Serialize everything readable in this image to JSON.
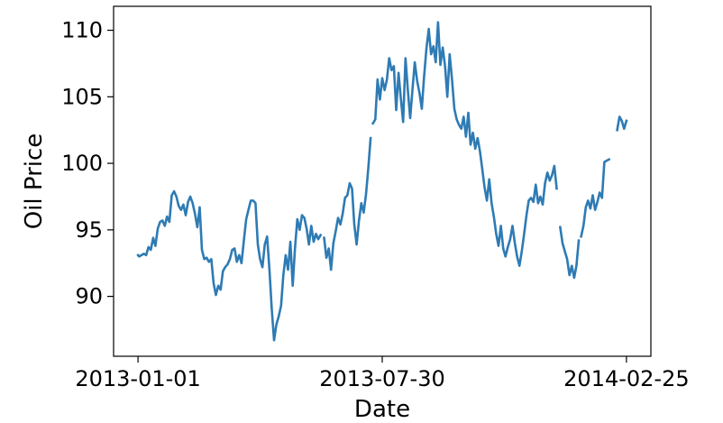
{
  "chart_data": {
    "type": "line",
    "title": "",
    "xlabel": "Date",
    "ylabel": "Oil Price",
    "x_tick_labels": [
      "2013-01-01",
      "2013-07-30",
      "2014-02-25"
    ],
    "y_ticks": [
      90,
      95,
      100,
      105,
      110
    ],
    "ylim": [
      85.5,
      111.8
    ],
    "xlim": [
      "2012-12-11",
      "2014-03-18"
    ],
    "grid": false,
    "line_color": "#2e7bb4",
    "series": [
      {
        "points": [
          [
            "2013-01-01",
            93.1
          ],
          [
            "2013-01-02",
            93.0
          ],
          [
            "2013-01-04",
            93.1
          ],
          [
            "2013-01-06",
            93.2
          ],
          [
            "2013-01-08",
            93.1
          ],
          [
            "2013-01-10",
            93.7
          ],
          [
            "2013-01-12",
            93.5
          ],
          [
            "2013-01-14",
            94.4
          ],
          [
            "2013-01-16",
            93.8
          ],
          [
            "2013-01-18",
            95.1
          ],
          [
            "2013-01-20",
            95.6
          ],
          [
            "2013-01-22",
            95.7
          ],
          [
            "2013-01-24",
            95.3
          ],
          [
            "2013-01-26",
            96.0
          ],
          [
            "2013-01-28",
            95.6
          ],
          [
            "2013-01-30",
            97.6
          ],
          [
            "2013-02-01",
            97.9
          ],
          [
            "2013-02-03",
            97.5
          ],
          [
            "2013-02-05",
            96.8
          ],
          [
            "2013-02-07",
            96.5
          ],
          [
            "2013-02-09",
            96.9
          ],
          [
            "2013-02-11",
            96.1
          ],
          [
            "2013-02-13",
            97.1
          ],
          [
            "2013-02-15",
            97.5
          ],
          [
            "2013-02-17",
            97.0
          ],
          [
            "2013-02-19",
            96.2
          ],
          [
            "2013-02-21",
            95.2
          ],
          [
            "2013-02-23",
            96.7
          ],
          [
            "2013-02-25",
            93.5
          ],
          [
            "2013-02-27",
            92.8
          ],
          [
            "2013-03-01",
            92.9
          ],
          [
            "2013-03-03",
            92.6
          ],
          [
            "2013-03-05",
            92.8
          ],
          [
            "2013-03-07",
            91.0
          ],
          [
            "2013-03-09",
            90.1
          ],
          [
            "2013-03-11",
            90.8
          ],
          [
            "2013-03-13",
            90.5
          ],
          [
            "2013-03-15",
            91.9
          ],
          [
            "2013-03-17",
            92.2
          ],
          [
            "2013-03-19",
            92.4
          ],
          [
            "2013-03-21",
            92.8
          ],
          [
            "2013-03-23",
            93.5
          ],
          [
            "2013-03-25",
            93.6
          ],
          [
            "2013-03-27",
            92.6
          ],
          [
            "2013-03-29",
            93.1
          ],
          [
            "2013-03-31",
            92.5
          ],
          [
            "2013-04-02",
            94.2
          ],
          [
            "2013-04-04",
            95.8
          ],
          [
            "2013-04-06",
            96.5
          ],
          [
            "2013-04-08",
            97.2
          ],
          [
            "2013-04-10",
            97.2
          ],
          [
            "2013-04-12",
            97.0
          ],
          [
            "2013-04-14",
            93.9
          ],
          [
            "2013-04-16",
            92.8
          ],
          [
            "2013-04-18",
            92.2
          ],
          [
            "2013-04-20",
            93.9
          ],
          [
            "2013-04-22",
            94.5
          ],
          [
            "2013-04-24",
            92.0
          ],
          [
            "2013-04-26",
            89.1
          ],
          [
            "2013-04-28",
            86.7
          ],
          [
            "2013-04-30",
            87.9
          ],
          [
            "2013-05-02",
            88.5
          ],
          [
            "2013-05-04",
            89.3
          ],
          [
            "2013-05-06",
            91.6
          ],
          [
            "2013-05-08",
            93.1
          ],
          [
            "2013-05-10",
            92.0
          ],
          [
            "2013-05-12",
            94.1
          ],
          [
            "2013-05-14",
            90.8
          ],
          [
            "2013-05-16",
            93.6
          ],
          [
            "2013-05-18",
            95.8
          ],
          [
            "2013-05-20",
            95.0
          ],
          [
            "2013-05-22",
            96.1
          ],
          [
            "2013-05-24",
            95.9
          ],
          [
            "2013-05-26",
            95.1
          ],
          [
            "2013-05-28",
            93.9
          ],
          [
            "2013-05-30",
            95.3
          ],
          [
            "2013-06-01",
            94.1
          ],
          [
            "2013-06-03",
            94.7
          ],
          [
            "2013-06-05",
            94.3
          ],
          [
            "2013-06-07",
            94.6
          ]
        ]
      },
      {
        "points": [
          [
            "2013-06-10",
            94.4
          ],
          [
            "2013-06-12",
            92.9
          ],
          [
            "2013-06-14",
            93.6
          ],
          [
            "2013-06-16",
            92.0
          ],
          [
            "2013-06-18",
            94.0
          ],
          [
            "2013-06-20",
            94.9
          ],
          [
            "2013-06-22",
            95.9
          ],
          [
            "2013-06-24",
            95.4
          ],
          [
            "2013-06-26",
            96.2
          ],
          [
            "2013-06-28",
            97.4
          ],
          [
            "2013-06-30",
            97.6
          ],
          [
            "2013-07-02",
            98.5
          ],
          [
            "2013-07-04",
            98.1
          ],
          [
            "2013-07-06",
            95.4
          ],
          [
            "2013-07-08",
            93.9
          ],
          [
            "2013-07-10",
            95.7
          ],
          [
            "2013-07-12",
            97.0
          ],
          [
            "2013-07-14",
            96.3
          ],
          [
            "2013-07-16",
            97.6
          ],
          [
            "2013-07-18",
            99.6
          ],
          [
            "2013-07-20",
            101.9
          ]
        ]
      },
      {
        "points": [
          [
            "2013-07-22",
            103.0
          ],
          [
            "2013-07-24",
            103.3
          ],
          [
            "2013-07-26",
            106.3
          ],
          [
            "2013-07-28",
            104.8
          ],
          [
            "2013-07-30",
            106.4
          ],
          [
            "2013-08-01",
            105.5
          ],
          [
            "2013-08-03",
            106.3
          ],
          [
            "2013-08-05",
            107.9
          ],
          [
            "2013-08-07",
            107.0
          ],
          [
            "2013-08-09",
            107.3
          ],
          [
            "2013-08-11",
            104.0
          ],
          [
            "2013-08-13",
            106.8
          ],
          [
            "2013-08-15",
            104.9
          ],
          [
            "2013-08-17",
            103.1
          ],
          [
            "2013-08-19",
            107.9
          ],
          [
            "2013-08-21",
            105.5
          ],
          [
            "2013-08-23",
            103.4
          ],
          [
            "2013-08-25",
            105.5
          ],
          [
            "2013-08-27",
            107.6
          ],
          [
            "2013-08-29",
            106.2
          ],
          [
            "2013-08-31",
            105.3
          ],
          [
            "2013-09-02",
            104.1
          ],
          [
            "2013-09-04",
            106.5
          ],
          [
            "2013-09-06",
            108.6
          ],
          [
            "2013-09-08",
            110.1
          ],
          [
            "2013-09-10",
            108.2
          ],
          [
            "2013-09-12",
            108.8
          ],
          [
            "2013-09-14",
            107.6
          ],
          [
            "2013-09-16",
            110.6
          ],
          [
            "2013-09-18",
            107.4
          ],
          [
            "2013-09-20",
            108.7
          ],
          [
            "2013-09-22",
            107.3
          ],
          [
            "2013-09-24",
            105.0
          ],
          [
            "2013-09-26",
            108.2
          ],
          [
            "2013-09-28",
            106.3
          ],
          [
            "2013-09-30",
            104.1
          ],
          [
            "2013-10-02",
            103.3
          ],
          [
            "2013-10-04",
            102.9
          ],
          [
            "2013-10-06",
            102.6
          ],
          [
            "2013-10-08",
            103.5
          ],
          [
            "2013-10-10",
            102.0
          ],
          [
            "2013-10-12",
            103.8
          ],
          [
            "2013-10-14",
            101.4
          ],
          [
            "2013-10-16",
            102.3
          ],
          [
            "2013-10-18",
            101.1
          ],
          [
            "2013-10-20",
            101.9
          ],
          [
            "2013-10-22",
            100.9
          ],
          [
            "2013-10-24",
            99.6
          ],
          [
            "2013-10-26",
            98.2
          ],
          [
            "2013-10-28",
            97.2
          ],
          [
            "2013-10-30",
            98.8
          ],
          [
            "2013-11-01",
            97.0
          ],
          [
            "2013-11-03",
            96.0
          ],
          [
            "2013-11-05",
            94.7
          ],
          [
            "2013-11-07",
            93.8
          ],
          [
            "2013-11-09",
            95.3
          ],
          [
            "2013-11-11",
            93.6
          ],
          [
            "2013-11-13",
            93.0
          ],
          [
            "2013-11-15",
            93.7
          ],
          [
            "2013-11-17",
            94.3
          ],
          [
            "2013-11-19",
            95.3
          ],
          [
            "2013-11-21",
            94.0
          ],
          [
            "2013-11-23",
            93.0
          ],
          [
            "2013-11-25",
            92.3
          ],
          [
            "2013-11-27",
            93.4
          ],
          [
            "2013-11-29",
            94.7
          ],
          [
            "2013-12-01",
            96.1
          ],
          [
            "2013-12-03",
            97.2
          ],
          [
            "2013-12-05",
            97.4
          ],
          [
            "2013-12-07",
            97.1
          ],
          [
            "2013-12-09",
            98.4
          ],
          [
            "2013-12-11",
            97.0
          ],
          [
            "2013-12-13",
            97.5
          ],
          [
            "2013-12-15",
            96.9
          ],
          [
            "2013-12-17",
            98.5
          ],
          [
            "2013-12-19",
            99.3
          ],
          [
            "2013-12-21",
            98.7
          ],
          [
            "2013-12-23",
            99.1
          ],
          [
            "2013-12-25",
            99.8
          ],
          [
            "2013-12-27",
            98.1
          ]
        ]
      },
      {
        "points": [
          [
            "2013-12-30",
            95.2
          ],
          [
            "2014-01-01",
            94.0
          ],
          [
            "2014-01-03",
            93.4
          ],
          [
            "2014-01-05",
            92.8
          ],
          [
            "2014-01-07",
            91.6
          ],
          [
            "2014-01-09",
            92.3
          ],
          [
            "2014-01-11",
            91.4
          ],
          [
            "2014-01-13",
            92.3
          ],
          [
            "2014-01-15",
            94.2
          ]
        ]
      },
      {
        "points": [
          [
            "2014-01-17",
            94.5
          ],
          [
            "2014-01-19",
            95.3
          ],
          [
            "2014-01-21",
            96.7
          ],
          [
            "2014-01-23",
            97.2
          ],
          [
            "2014-01-25",
            96.6
          ],
          [
            "2014-01-27",
            97.6
          ],
          [
            "2014-01-29",
            96.5
          ],
          [
            "2014-01-31",
            97.1
          ],
          [
            "2014-02-02",
            97.8
          ],
          [
            "2014-02-04",
            97.4
          ],
          [
            "2014-02-06",
            100.1
          ],
          [
            "2014-02-08",
            100.2
          ],
          [
            "2014-02-10",
            100.3
          ]
        ]
      },
      {
        "points": [
          [
            "2014-02-17",
            102.5
          ],
          [
            "2014-02-19",
            103.5
          ],
          [
            "2014-02-21",
            103.2
          ],
          [
            "2014-02-23",
            102.6
          ],
          [
            "2014-02-25",
            103.2
          ]
        ]
      }
    ]
  }
}
